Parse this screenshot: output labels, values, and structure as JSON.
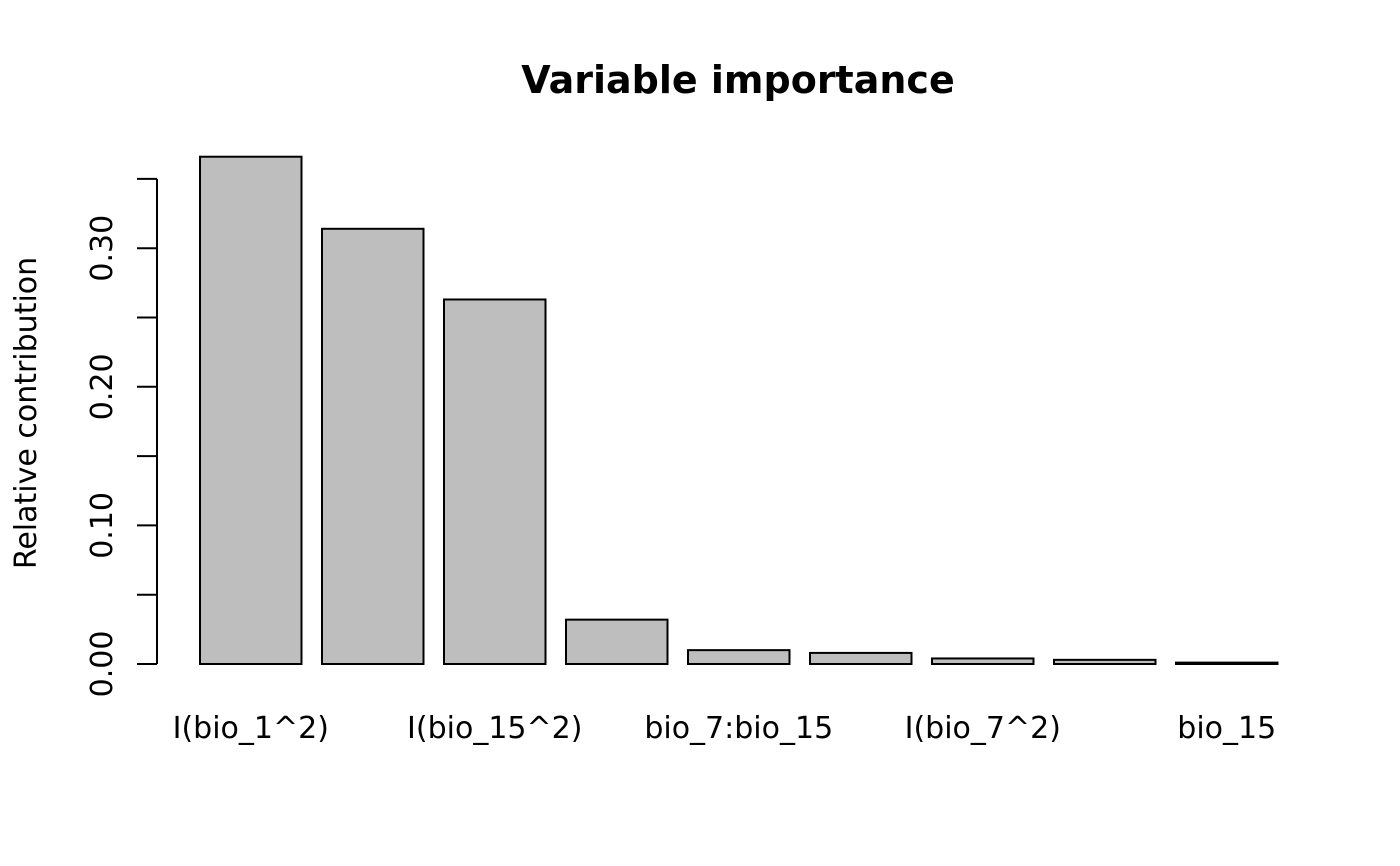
{
  "chart_data": {
    "type": "bar",
    "title": "Variable importance",
    "xlabel": "",
    "ylabel": "Relative contribution",
    "ylim": [
      0,
      0.35
    ],
    "yticks": [
      "0.00",
      "0.10",
      "0.20",
      "0.30"
    ],
    "ytick_values": [
      0.0,
      0.1,
      0.2,
      0.3
    ],
    "minor_ytick_values": [
      0.05,
      0.15,
      0.25,
      0.35
    ],
    "categories": [
      "I(bio_1^2)",
      "",
      "I(bio_15^2)",
      "",
      "bio_7:bio_15",
      "",
      "I(bio_7^2)",
      "",
      "bio_15"
    ],
    "values": [
      0.366,
      0.314,
      0.263,
      0.032,
      0.01,
      0.008,
      0.004,
      0.003,
      0.001
    ],
    "bar_fill": "#bebebe",
    "bar_stroke": "#000000",
    "grid": false,
    "legend": "none"
  }
}
